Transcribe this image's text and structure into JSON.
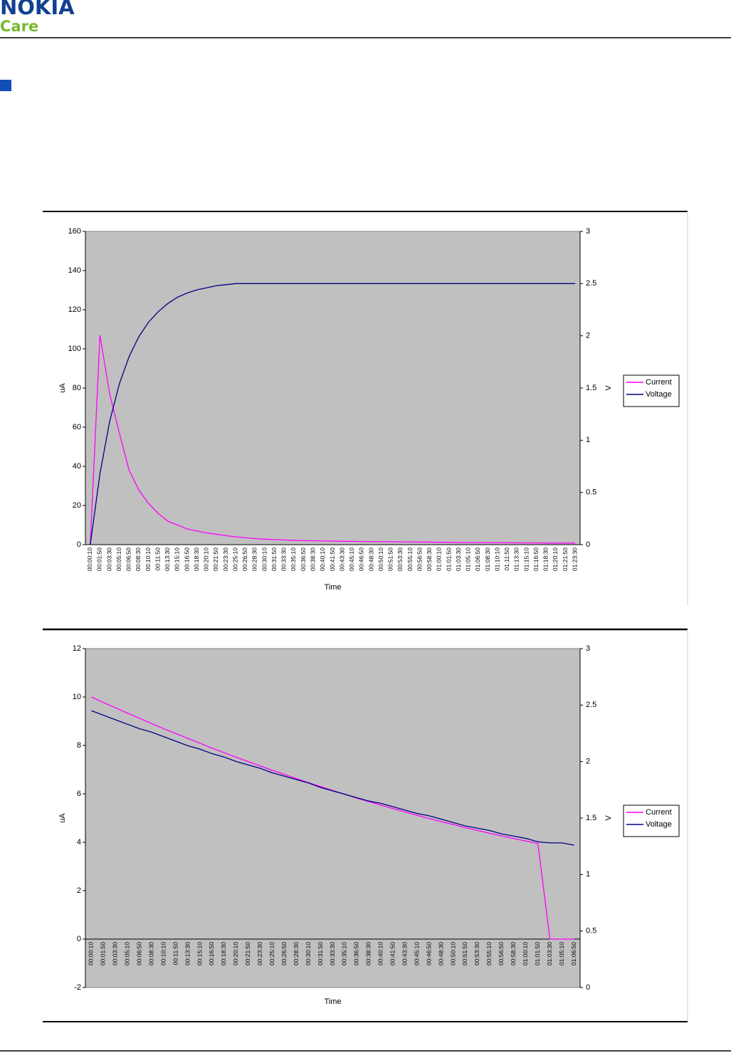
{
  "header": {
    "logo": "NOKIA",
    "subtitle": "Care"
  },
  "chart_data": [
    {
      "type": "line",
      "x_label": "Time",
      "y_label": "uA",
      "y2_label": "V",
      "categories": [
        "00:00:10",
        "00:01:50",
        "00:03:30",
        "00:05:10",
        "00:06:50",
        "00:08:30",
        "00:10:10",
        "00:11:50",
        "00:13:30",
        "00:15:10",
        "00:16:50",
        "00:18:30",
        "00:20:10",
        "00:21:50",
        "00:23:30",
        "00:25:10",
        "00:26:50",
        "00:28:30",
        "00:30:10",
        "00:31:50",
        "00:33:30",
        "00:35:10",
        "00:36:50",
        "00:38:30",
        "00:40:10",
        "00:41:50",
        "00:43:30",
        "00:45:10",
        "00:46:50",
        "00:48:30",
        "00:50:10",
        "00:51:50",
        "00:53:30",
        "00:55:10",
        "00:56:50",
        "00:58:30",
        "01:00:10",
        "01:01:50",
        "01:03:30",
        "01:05:10",
        "01:06:50",
        "01:08:30",
        "01:10:10",
        "01:11:50",
        "01:13:30",
        "01:15:10",
        "01:16:50",
        "01:18:30",
        "01:20:10",
        "01:21:50",
        "01:23:30"
      ],
      "series": [
        {
          "name": "Current",
          "color": "#ff00ff",
          "values": [
            0,
            107,
            77,
            57,
            38,
            28,
            21,
            16,
            12,
            10,
            8,
            7,
            6,
            5.3,
            4.6,
            4,
            3.5,
            3.1,
            2.8,
            2.6,
            2.4,
            2.2,
            2.1,
            2,
            1.9,
            1.8,
            1.7,
            1.7,
            1.6,
            1.6,
            1.5,
            1.5,
            1.4,
            1.4,
            1.3,
            1.3,
            1.2,
            1.2,
            1.1,
            1.1,
            1.1,
            1,
            1,
            1,
            0.9,
            0.9,
            0.9,
            0.8,
            0.8,
            0.8,
            0.8
          ]
        },
        {
          "name": "Voltage",
          "color": "#000080",
          "axis": "y2",
          "values": [
            0,
            0.68,
            1.18,
            1.54,
            1.8,
            1.99,
            2.13,
            2.23,
            2.31,
            2.37,
            2.41,
            2.44,
            2.46,
            2.48,
            2.49,
            2.5,
            2.5,
            2.5,
            2.5,
            2.5,
            2.5,
            2.5,
            2.5,
            2.5,
            2.5,
            2.5,
            2.5,
            2.5,
            2.5,
            2.5,
            2.5,
            2.5,
            2.5,
            2.5,
            2.5,
            2.5,
            2.5,
            2.5,
            2.5,
            2.5,
            2.5,
            2.5,
            2.5,
            2.5,
            2.5,
            2.5,
            2.5,
            2.5,
            2.5,
            2.5,
            2.5
          ]
        }
      ],
      "ylim": [
        0,
        160
      ],
      "yticks": [
        0,
        20,
        40,
        60,
        80,
        100,
        120,
        140,
        160
      ],
      "y2lim": [
        0,
        3
      ],
      "y2ticks": [
        0,
        0.5,
        1,
        1.5,
        2,
        2.5,
        3
      ],
      "plot_background": "#c0c0c0",
      "grid": false,
      "legend": "right"
    },
    {
      "type": "line",
      "x_label": "Time",
      "y_label": "uA",
      "y2_label": "V",
      "categories": [
        "00:00:10",
        "00:01:50",
        "00:03:30",
        "00:05:10",
        "00:06:50",
        "00:08:30",
        "00:10:10",
        "00:11:50",
        "00:13:30",
        "00:15:10",
        "00:16:50",
        "00:18:30",
        "00:20:10",
        "00:21:50",
        "00:23:30",
        "00:25:10",
        "00:26:50",
        "00:28:30",
        "00:30:10",
        "00:31:50",
        "00:33:30",
        "00:35:10",
        "00:36:50",
        "00:38:30",
        "00:40:10",
        "00:41:50",
        "00:43:30",
        "00:45:10",
        "00:46:50",
        "00:48:30",
        "00:50:10",
        "00:51:50",
        "00:53:30",
        "00:55:10",
        "00:56:50",
        "00:58:30",
        "01:00:10",
        "01:01:50",
        "01:03:30",
        "01:05:10",
        "01:06:50"
      ],
      "series": [
        {
          "name": "Current",
          "color": "#ff00ff",
          "values": [
            10,
            9.77,
            9.55,
            9.33,
            9.12,
            8.9,
            8.69,
            8.49,
            8.29,
            8.09,
            7.89,
            7.7,
            7.51,
            7.33,
            7.15,
            6.97,
            6.8,
            6.63,
            6.46,
            6.3,
            6.14,
            5.98,
            5.82,
            5.68,
            5.53,
            5.39,
            5.25,
            5.11,
            4.98,
            4.85,
            4.73,
            4.6,
            4.49,
            4.37,
            4.26,
            4.15,
            4.05,
            3.95,
            0,
            0,
            0
          ]
        },
        {
          "name": "Voltage",
          "color": "#000080",
          "axis": "y2",
          "values": [
            2.45,
            2.41,
            2.37,
            2.33,
            2.29,
            2.26,
            2.22,
            2.18,
            2.14,
            2.11,
            2.07,
            2.04,
            2,
            1.97,
            1.94,
            1.9,
            1.87,
            1.84,
            1.81,
            1.77,
            1.74,
            1.71,
            1.68,
            1.65,
            1.63,
            1.6,
            1.57,
            1.54,
            1.52,
            1.49,
            1.46,
            1.43,
            1.41,
            1.39,
            1.36,
            1.34,
            1.32,
            1.29,
            1.28,
            1.28,
            1.26
          ]
        }
      ],
      "ylim": [
        -2,
        12
      ],
      "yticks": [
        -2,
        0,
        2,
        4,
        6,
        8,
        10,
        12
      ],
      "y2lim": [
        0,
        3
      ],
      "y2ticks": [
        0,
        0.5,
        1,
        1.5,
        2,
        2.5,
        3
      ],
      "plot_background": "#c0c0c0",
      "grid": false,
      "legend": "right"
    }
  ]
}
